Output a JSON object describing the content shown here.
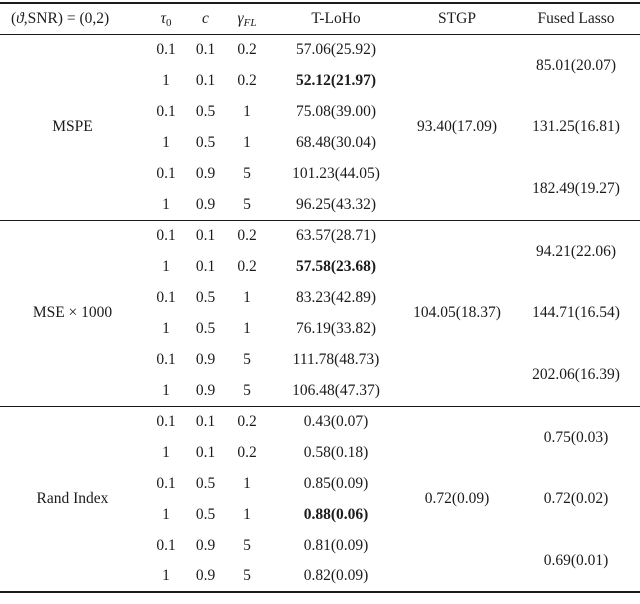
{
  "header": {
    "condition_open": "(",
    "condition_vartheta": "ϑ",
    "condition_rest": ",SNR) = (0,2)",
    "tau": "τ",
    "tau_sub": "0",
    "c": "c",
    "gamma": "γ",
    "gamma_sub": "FL",
    "tloho": "T-LoHo",
    "stgp": "STGP",
    "fused_lasso": "Fused Lasso"
  },
  "colors": {
    "text": "#1b1b1b",
    "background": "#ffffff"
  },
  "sections": [
    {
      "label": "MSPE",
      "stgp": "93.40(17.09)",
      "fused": [
        "85.01(20.07)",
        "131.25(16.81)",
        "182.49(19.27)"
      ],
      "rows": [
        {
          "tau0": "0.1",
          "c": "0.1",
          "gamma_fl": "0.2",
          "tloho": "57.06(25.92)"
        },
        {
          "tau0": "1",
          "c": "0.1",
          "gamma_fl": "0.2",
          "tloho": "52.12(21.97)"
        },
        {
          "tau0": "0.1",
          "c": "0.5",
          "gamma_fl": "1",
          "tloho": "75.08(39.00)"
        },
        {
          "tau0": "1",
          "c": "0.5",
          "gamma_fl": "1",
          "tloho": "68.48(30.04)"
        },
        {
          "tau0": "0.1",
          "c": "0.9",
          "gamma_fl": "5",
          "tloho": "101.23(44.05)"
        },
        {
          "tau0": "1",
          "c": "0.9",
          "gamma_fl": "5",
          "tloho": "96.25(43.32)"
        }
      ]
    },
    {
      "label": "MSE × 1000",
      "stgp": "104.05(18.37)",
      "fused": [
        "94.21(22.06)",
        "144.71(16.54)",
        "202.06(16.39)"
      ],
      "rows": [
        {
          "tau0": "0.1",
          "c": "0.1",
          "gamma_fl": "0.2",
          "tloho": "63.57(28.71)"
        },
        {
          "tau0": "1",
          "c": "0.1",
          "gamma_fl": "0.2",
          "tloho": "57.58(23.68)"
        },
        {
          "tau0": "0.1",
          "c": "0.5",
          "gamma_fl": "1",
          "tloho": "83.23(42.89)"
        },
        {
          "tau0": "1",
          "c": "0.5",
          "gamma_fl": "1",
          "tloho": "76.19(33.82)"
        },
        {
          "tau0": "0.1",
          "c": "0.9",
          "gamma_fl": "5",
          "tloho": "111.78(48.73)"
        },
        {
          "tau0": "1",
          "c": "0.9",
          "gamma_fl": "5",
          "tloho": "106.48(47.37)"
        }
      ]
    },
    {
      "label": "Rand Index",
      "stgp": "0.72(0.09)",
      "fused": [
        "0.75(0.03)",
        "0.72(0.02)",
        "0.69(0.01)"
      ],
      "rows": [
        {
          "tau0": "0.1",
          "c": "0.1",
          "gamma_fl": "0.2",
          "tloho": "0.43(0.07)"
        },
        {
          "tau0": "1",
          "c": "0.1",
          "gamma_fl": "0.2",
          "tloho": "0.58(0.18)"
        },
        {
          "tau0": "0.1",
          "c": "0.5",
          "gamma_fl": "1",
          "tloho": "0.85(0.09)"
        },
        {
          "tau0": "1",
          "c": "0.5",
          "gamma_fl": "1",
          "tloho": "0.88(0.06)"
        },
        {
          "tau0": "0.1",
          "c": "0.9",
          "gamma_fl": "5",
          "tloho": "0.81(0.09)"
        },
        {
          "tau0": "1",
          "c": "0.9",
          "gamma_fl": "5",
          "tloho": "0.82(0.09)"
        }
      ]
    }
  ]
}
